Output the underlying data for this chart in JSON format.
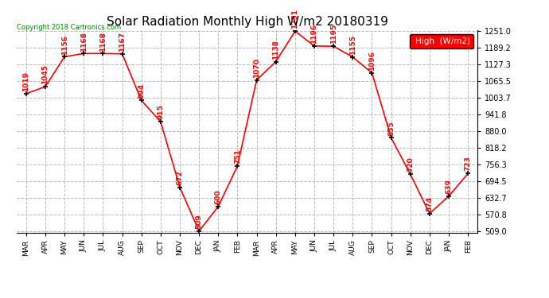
{
  "title": "Solar Radiation Monthly High W/m2 20180319",
  "copyright": "Copyright 2018 Cartronics.com",
  "legend_label": "High  (W/m2)",
  "months": [
    "MAR",
    "APR",
    "MAY",
    "JUN",
    "JUL",
    "AUG",
    "SEP",
    "OCT",
    "NOV",
    "DEC",
    "JAN",
    "FEB",
    "MAR",
    "APR",
    "MAY",
    "JUN",
    "JUL",
    "AUG",
    "SEP",
    "OCT",
    "NOV",
    "DEC",
    "JAN",
    "FEB"
  ],
  "values": [
    1019,
    1045,
    1156,
    1168,
    1168,
    1167,
    994,
    915,
    672,
    509,
    600,
    751,
    1070,
    1138,
    1251,
    1196,
    1195,
    1155,
    1096,
    855,
    720,
    574,
    639,
    723
  ],
  "ylim_min": 509.0,
  "ylim_max": 1251.0,
  "yticks": [
    509.0,
    570.8,
    632.7,
    694.5,
    756.3,
    818.2,
    880.0,
    941.8,
    1003.7,
    1065.5,
    1127.3,
    1189.2,
    1251.0
  ],
  "line_color": "red",
  "marker_color": "black",
  "label_color": "red",
  "bg_color": "white",
  "grid_color": "#bbbbbb",
  "title_fontsize": 11,
  "label_fontsize": 7,
  "legend_bg": "red",
  "legend_text_color": "white",
  "copyright_color": "green"
}
